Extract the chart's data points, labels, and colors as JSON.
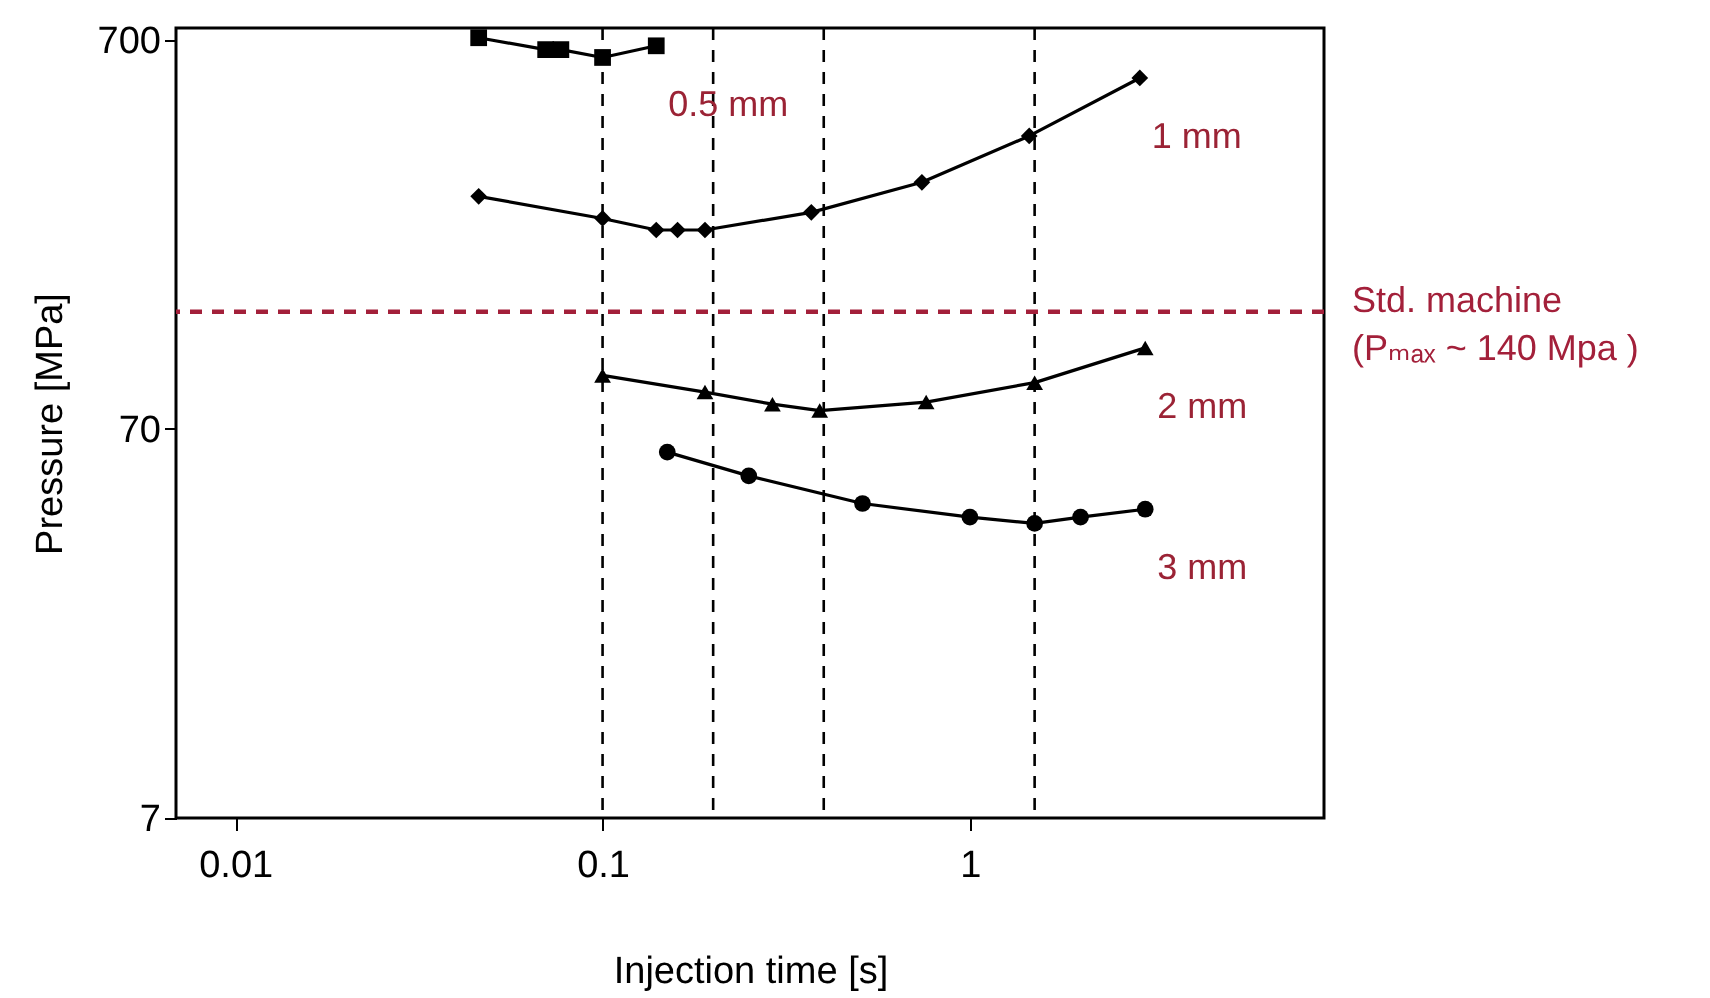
{
  "chart_data": {
    "type": "line",
    "xlabel": "Injection time [s]",
    "ylabel": "Pressure [MPa]",
    "log": "xy",
    "xlim": [
      0.0069,
      9.2
    ],
    "xticks": [
      0.01,
      0.1,
      1
    ],
    "ylim": [
      7,
      750
    ],
    "yticks": [
      7,
      70,
      700
    ],
    "grid": false,
    "series": [
      {
        "name": "0.5 mm",
        "color": "#000000",
        "marker": "square",
        "x": [
          0.046,
          0.07,
          0.077,
          0.1,
          0.14
        ],
        "values": [
          708,
          660,
          660,
          630,
          675
        ]
      },
      {
        "name": "1 mm",
        "color": "#000000",
        "marker": "diamond",
        "x": [
          0.046,
          0.1,
          0.14,
          0.16,
          0.19,
          0.37,
          0.74,
          1.45,
          2.9
        ],
        "values": [
          277,
          243,
          227,
          227,
          227,
          252,
          301,
          396,
          558
        ]
      },
      {
        "name": "2 mm",
        "color": "#000000",
        "marker": "triangle",
        "x": [
          0.1,
          0.19,
          0.29,
          0.39,
          0.76,
          1.5,
          3.0
        ],
        "values": [
          96,
          87,
          81,
          78,
          82,
          92,
          113
        ]
      },
      {
        "name": "3 mm",
        "color": "#000000",
        "marker": "circle",
        "x": [
          0.15,
          0.25,
          0.51,
          1.0,
          1.5,
          2.0,
          3.0
        ],
        "values": [
          61,
          53,
          45,
          41.5,
          40,
          41.5,
          43.5
        ]
      }
    ],
    "ref_lines": [
      {
        "axis": "y",
        "value": 140,
        "label": "Std. machine\n(Pₘₐₓ ~ 140 Mpa )",
        "color": "#a3203a",
        "line_style": "dashed"
      },
      {
        "axis": "x",
        "value": 0.1,
        "color": "#000000",
        "line_style": "dashed"
      },
      {
        "axis": "x",
        "value": 0.2,
        "color": "#000000",
        "line_style": "dashed"
      },
      {
        "axis": "x",
        "value": 0.4,
        "color": "#000000",
        "line_style": "dashed"
      },
      {
        "axis": "x",
        "value": 1.5,
        "color": "#000000",
        "line_style": "dashed"
      }
    ]
  }
}
